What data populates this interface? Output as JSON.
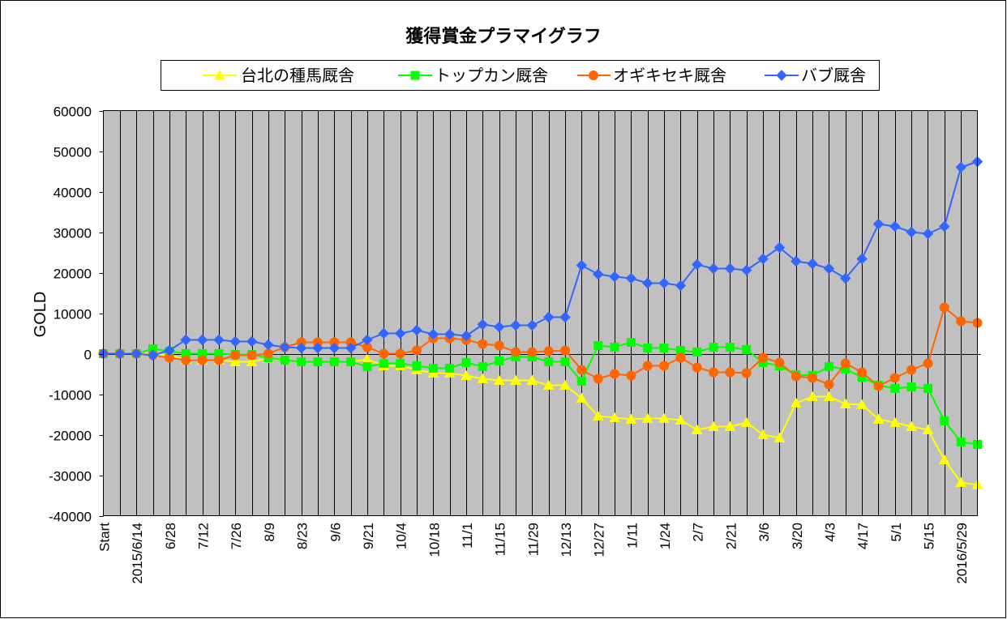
{
  "chart_data": {
    "type": "line",
    "title": "獲得賞金プラマイグラフ",
    "ylabel": "GOLD",
    "ylim": [
      -40000,
      60000
    ],
    "yticks": [
      60000,
      50000,
      40000,
      30000,
      20000,
      10000,
      0,
      -10000,
      -20000,
      -30000,
      -40000
    ],
    "grid": {
      "vertical": true,
      "horizontal": false
    },
    "legend": "top",
    "plot_background": "#C0C0C0",
    "categories": [
      "Start",
      "",
      "2015/6/14",
      "",
      "6/28",
      "",
      "7/12",
      "",
      "7/26",
      "",
      "8/9",
      "",
      "8/23",
      "",
      "9/6",
      "",
      "9/21",
      "",
      "10/4",
      "",
      "10/18",
      "",
      "11/1",
      "",
      "11/15",
      "",
      "11/29",
      "",
      "12/13",
      "",
      "12/27",
      "",
      "1/11",
      "",
      "1/24",
      "",
      "2/7",
      "",
      "2/21",
      "",
      "3/6",
      "",
      "3/20",
      "",
      "4/3",
      "",
      "4/17",
      "",
      "5/1",
      "",
      "5/15",
      "",
      "2016/5/29",
      ""
    ],
    "series": [
      {
        "name": "台北の種馬厩舎",
        "color": "#FFFF00",
        "marker": "triangle",
        "values": [
          0,
          0,
          0,
          0,
          -400,
          -1400,
          -1600,
          -1600,
          -2000,
          -2000,
          -1200,
          -1600,
          -2000,
          -2000,
          -2000,
          -2000,
          -1400,
          -3000,
          -3000,
          -4000,
          -4800,
          -4800,
          -5400,
          -6200,
          -6600,
          -6600,
          -6600,
          -7800,
          -7800,
          -11000,
          -15400,
          -15800,
          -16200,
          -16000,
          -16000,
          -16400,
          -18800,
          -18000,
          -18000,
          -17000,
          -20000,
          -20800,
          -12200,
          -10600,
          -10600,
          -12400,
          -12600,
          -16200,
          -17000,
          -18000,
          -18800,
          -26200,
          -31800,
          -32400
        ]
      },
      {
        "name": "トップカン厩舎",
        "color": "#00FF00",
        "marker": "square",
        "values": [
          0,
          0,
          0,
          1200,
          600,
          0,
          0,
          0,
          -200,
          -200,
          -1000,
          -1600,
          -2000,
          -2000,
          -2000,
          -2000,
          -3200,
          -2400,
          -2400,
          -3000,
          -3600,
          -3600,
          -2200,
          -3200,
          -1800,
          -800,
          -800,
          -2000,
          -2000,
          -6800,
          2000,
          1600,
          2800,
          1400,
          1400,
          800,
          400,
          1600,
          1600,
          1000,
          -2200,
          -3000,
          -5200,
          -5400,
          -3200,
          -3800,
          -5800,
          -7800,
          -8600,
          -8200,
          -8600,
          -16600,
          -21800,
          -22400
        ]
      },
      {
        "name": "オギキセキ厩舎",
        "color": "#FF6600",
        "marker": "circle",
        "values": [
          0,
          0,
          0,
          -400,
          -1000,
          -1600,
          -1600,
          -1600,
          -400,
          -400,
          0,
          1600,
          2800,
          2800,
          2800,
          2800,
          1600,
          0,
          0,
          800,
          3800,
          3800,
          3400,
          2400,
          2000,
          400,
          400,
          600,
          800,
          -4000,
          -6200,
          -5000,
          -5400,
          -3000,
          -3000,
          -1000,
          -3400,
          -4600,
          -4600,
          -4800,
          -1000,
          -2200,
          -5600,
          -6000,
          -7600,
          -2400,
          -4600,
          -8000,
          -6000,
          -4000,
          -2400,
          11400,
          8000,
          7600
        ]
      },
      {
        "name": "バブ厩舎",
        "color": "#3366FF",
        "marker": "diamond",
        "values": [
          0,
          0,
          0,
          -400,
          800,
          3400,
          3400,
          3400,
          3000,
          3000,
          2200,
          1600,
          1400,
          1400,
          1400,
          1400,
          3400,
          5000,
          5000,
          5800,
          4800,
          4800,
          4400,
          7200,
          6600,
          7000,
          7000,
          9000,
          9000,
          21800,
          19600,
          19000,
          18600,
          17400,
          17400,
          16800,
          22000,
          21000,
          21000,
          20600,
          23400,
          26200,
          22800,
          22200,
          21000,
          18600,
          23400,
          32000,
          31400,
          30000,
          29600,
          31400,
          46000,
          47400
        ]
      }
    ]
  }
}
